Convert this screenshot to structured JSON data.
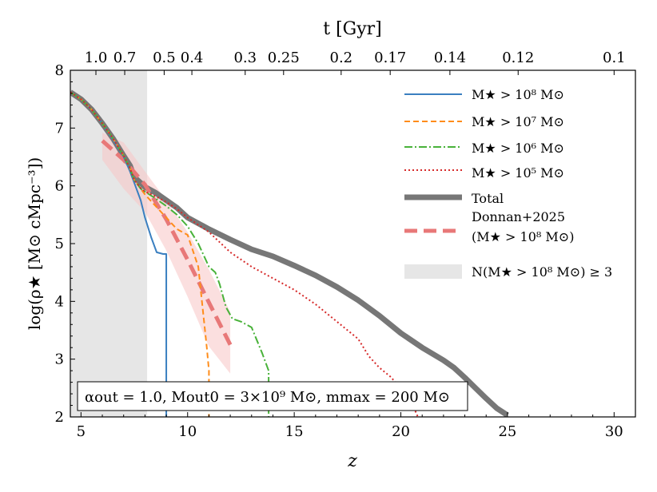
{
  "chart_data": {
    "type": "line",
    "title": "",
    "xlabel": "z",
    "ylabel": "log(ρ★ [M⊙ cMpc⁻³])",
    "top_xlabel": "t [Gyr]",
    "xlim": [
      4.5,
      31
    ],
    "ylim": [
      2,
      8
    ],
    "x_ticks": [
      5,
      10,
      15,
      20,
      25,
      30
    ],
    "y_ticks": [
      2,
      3,
      4,
      5,
      6,
      7,
      8
    ],
    "top_ticks": [
      {
        "label": "1.0",
        "z": 5.7
      },
      {
        "label": "0.7",
        "z": 7.05
      },
      {
        "label": "0.5",
        "z": 8.9
      },
      {
        "label": "0.4",
        "z": 10.2
      },
      {
        "label": "0.3",
        "z": 12.7
      },
      {
        "label": "0.25",
        "z": 14.5
      },
      {
        "label": "0.2",
        "z": 17.2
      },
      {
        "label": "0.17",
        "z": 19.5
      },
      {
        "label": "0.14",
        "z": 22.3
      },
      {
        "label": "0.12",
        "z": 25.5
      },
      {
        "label": "0.1",
        "z": 30.0
      }
    ],
    "shaded_region": {
      "x0": 4.5,
      "x1": 8.1,
      "label": "N(M★ > 10⁸ M⊙) ≥ 3",
      "color": "#e6e6e6"
    },
    "series": [
      {
        "name": "M★ > 10⁸ M⊙",
        "color": "#3a7fc0",
        "style": "solid",
        "width": 2,
        "x": [
          4.5,
          5.0,
          5.5,
          6.0,
          6.5,
          7.0,
          7.3,
          7.5,
          7.8,
          8.0,
          8.3,
          8.55,
          8.85,
          9.0,
          9.0
        ],
        "y": [
          7.62,
          7.5,
          7.32,
          7.08,
          6.8,
          6.5,
          6.25,
          6.05,
          5.75,
          5.45,
          5.1,
          4.85,
          4.82,
          4.82,
          2.0
        ]
      },
      {
        "name": "M★ > 10⁷ M⊙",
        "color": "#ff8c1a",
        "style": "dashed",
        "width": 2,
        "x": [
          4.5,
          5.0,
          5.5,
          6.0,
          6.5,
          7.0,
          7.3,
          7.5,
          7.8,
          8.0,
          8.5,
          9.0,
          9.5,
          10.0,
          10.5,
          10.9,
          11.0,
          11.0
        ],
        "y": [
          7.62,
          7.5,
          7.32,
          7.08,
          6.82,
          6.52,
          6.3,
          6.1,
          5.95,
          5.85,
          5.65,
          5.45,
          5.25,
          5.15,
          4.6,
          3.2,
          2.8,
          2.0
        ]
      },
      {
        "name": "M★ > 10⁶ M⊙",
        "color": "#49b23a",
        "style": "dashdot",
        "width": 2,
        "x": [
          4.5,
          5.0,
          5.5,
          6.0,
          6.5,
          7.0,
          7.3,
          7.5,
          7.8,
          8.0,
          8.5,
          9.0,
          9.5,
          10.0,
          10.5,
          11.0,
          11.3,
          11.5,
          11.8,
          12.1,
          12.5,
          13.0,
          13.5,
          13.8,
          13.8
        ],
        "y": [
          7.62,
          7.5,
          7.32,
          7.08,
          6.82,
          6.52,
          6.3,
          6.1,
          5.95,
          5.9,
          5.78,
          5.65,
          5.5,
          5.3,
          5.0,
          4.6,
          4.5,
          4.3,
          3.9,
          3.7,
          3.65,
          3.55,
          3.1,
          2.8,
          2.0
        ]
      },
      {
        "name": "M★ > 10⁵ M⊙",
        "color": "#d62a2a",
        "style": "dotted",
        "width": 2,
        "x": [
          4.5,
          5.0,
          5.5,
          6.0,
          6.5,
          7.0,
          7.3,
          7.5,
          7.8,
          8.0,
          8.5,
          9.0,
          9.5,
          10.0,
          11.0,
          12.0,
          13.0,
          14.0,
          15.0,
          16.0,
          17.0,
          18.0,
          18.5,
          19.0,
          19.5,
          20.0,
          20.5,
          20.8
        ],
        "y": [
          7.62,
          7.5,
          7.32,
          7.08,
          6.82,
          6.52,
          6.3,
          6.1,
          5.96,
          5.9,
          5.82,
          5.72,
          5.6,
          5.45,
          5.2,
          4.85,
          4.6,
          4.4,
          4.2,
          3.95,
          3.65,
          3.35,
          3.05,
          2.85,
          2.7,
          2.5,
          2.25,
          2.0
        ]
      },
      {
        "name": "Total",
        "color": "#777777",
        "style": "solid",
        "width": 7,
        "x": [
          4.5,
          5.0,
          5.5,
          6.0,
          6.5,
          7.0,
          7.3,
          7.5,
          7.8,
          8.0,
          8.5,
          9.0,
          9.5,
          10.0,
          11.0,
          12.0,
          13.0,
          14.0,
          15.0,
          16.0,
          17.0,
          18.0,
          19.0,
          20.0,
          21.0,
          22.0,
          22.5,
          23.0,
          23.5,
          24.0,
          24.5,
          25.0
        ],
        "y": [
          7.62,
          7.5,
          7.32,
          7.08,
          6.82,
          6.52,
          6.35,
          6.15,
          6.05,
          5.98,
          5.88,
          5.75,
          5.62,
          5.45,
          5.25,
          5.07,
          4.9,
          4.78,
          4.62,
          4.45,
          4.25,
          4.02,
          3.75,
          3.45,
          3.2,
          2.98,
          2.85,
          2.68,
          2.5,
          2.32,
          2.15,
          2.03
        ]
      },
      {
        "name": "Donnan+2025 (M★ > 10⁸ M⊙)",
        "color": "#e87878",
        "style": "longdash",
        "width": 5,
        "x": [
          6.0,
          7.0,
          8.0,
          9.0,
          10.0,
          11.0,
          12.0
        ],
        "y": [
          6.78,
          6.45,
          6.02,
          5.42,
          4.72,
          3.98,
          3.25
        ]
      }
    ],
    "band": {
      "name": "Donnan+2025 uncertainty",
      "color": "#f7c5c5",
      "x": [
        6.0,
        7.0,
        8.0,
        9.0,
        10.0,
        11.0,
        12.0
      ],
      "upper": [
        6.92,
        6.75,
        6.25,
        5.75,
        5.2,
        4.55,
        3.82
      ],
      "lower": [
        6.45,
        5.95,
        5.55,
        4.88,
        4.08,
        3.22,
        2.75
      ]
    },
    "legend": {
      "placement": "top-right",
      "entries": [
        {
          "label": "M★ > 10⁸ M⊙"
        },
        {
          "label": "M★ > 10⁷ M⊙"
        },
        {
          "label": "M★ > 10⁶ M⊙"
        },
        {
          "label": "M★ > 10⁵ M⊙"
        },
        {
          "label": "Total"
        },
        {
          "label": "Donnan+2025",
          "label2": "(M★ > 10⁸ M⊙)"
        },
        {
          "label": "N(M★ > 10⁸ M⊙) ≥ 3"
        }
      ]
    },
    "annotation": "αout = 1.0, Mout0 = 3×10⁹ M⊙, mmax = 200 M⊙"
  }
}
